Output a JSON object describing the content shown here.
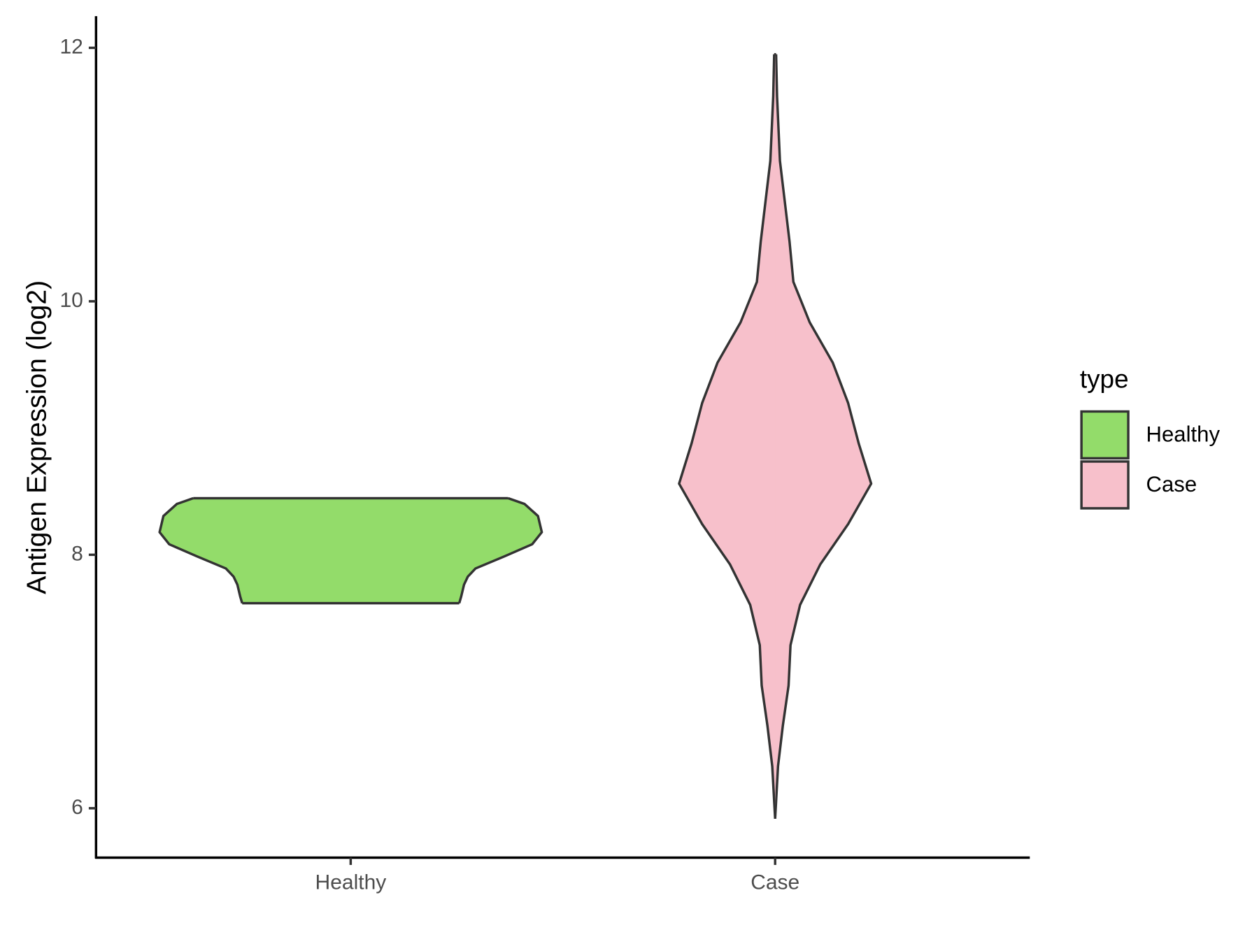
{
  "chart_data": {
    "type": "violin",
    "y_label": "Antigen Expression (log2)",
    "categories": [
      "Healthy",
      "Case"
    ],
    "legend_title": "type",
    "ylim": [
      5.61,
      12.25
    ],
    "yticks": [
      6,
      8,
      10,
      12
    ],
    "series": [
      {
        "name": "Healthy",
        "color": "#93dc6a",
        "y": [
          8.446,
          8.401,
          8.306,
          8.178,
          8.083,
          7.987,
          7.892,
          7.828,
          7.764,
          7.669,
          7.618
        ],
        "density": [
          1.64,
          1.81,
          1.95,
          1.99,
          1.89,
          1.6,
          1.3,
          1.22,
          1.18,
          1.15,
          1.13
        ]
      },
      {
        "name": "Case",
        "color": "#f7c0cb",
        "y": [
          11.949,
          11.618,
          11.108,
          10.79,
          10.471,
          10.153,
          9.834,
          9.516,
          9.197,
          8.879,
          8.561,
          8.242,
          7.924,
          7.605,
          7.287,
          6.968,
          6.65,
          6.331,
          5.917
        ],
        "density": [
          0.01,
          0.02,
          0.05,
          0.1,
          0.15,
          0.19,
          0.36,
          0.6,
          0.76,
          0.87,
          1.0,
          0.76,
          0.47,
          0.26,
          0.16,
          0.14,
          0.08,
          0.03,
          0
        ]
      }
    ]
  }
}
